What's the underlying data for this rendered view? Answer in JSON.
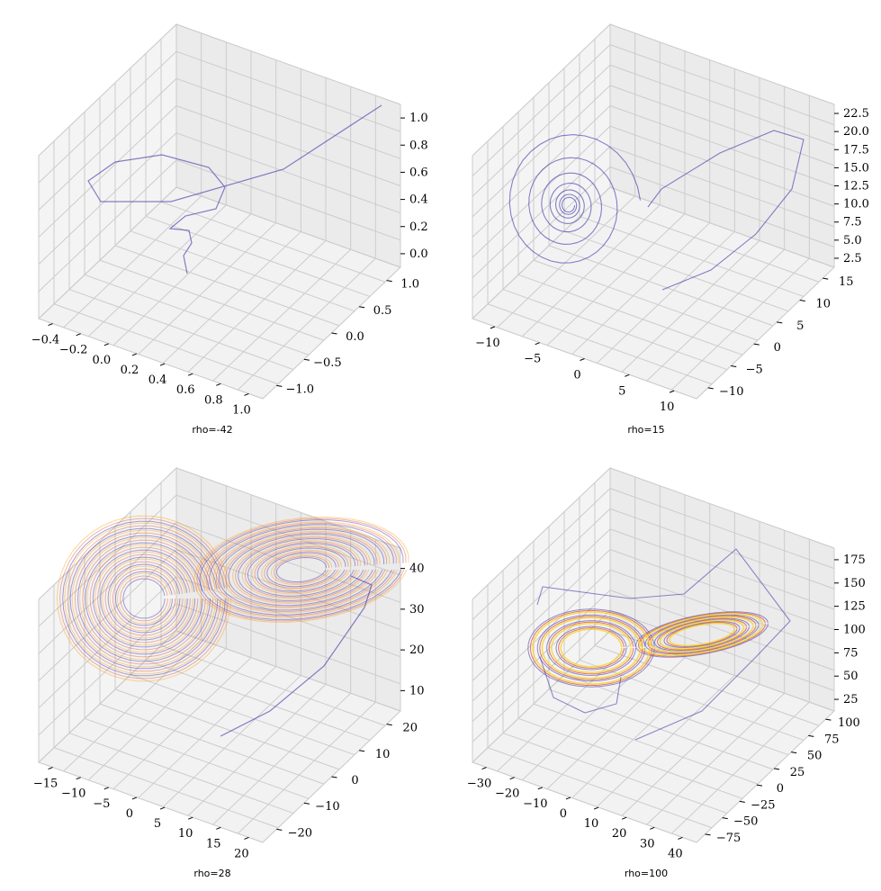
{
  "chart_data": [
    {
      "type": "line3d",
      "panel": "rho=-42",
      "caption": "rho=-42",
      "series": [
        {
          "color": "#3b2fa8",
          "x": [
            1.0,
            0.52,
            0.18,
            -0.08,
            -0.28,
            -0.4,
            -0.3,
            -0.08,
            0.1,
            0.16,
            0.1,
            0.0,
            -0.05,
            -0.02,
            0.0
          ],
          "y": [
            1.0,
            0.62,
            0.22,
            -0.2,
            -0.55,
            -0.7,
            -0.42,
            -0.1,
            0.08,
            0.2,
            0.15,
            0.05,
            0.0,
            0.0,
            0.0
          ],
          "z": [
            1.0,
            0.62,
            0.42,
            0.4,
            0.52,
            0.78,
            0.92,
            0.96,
            0.85,
            0.6,
            0.32,
            0.18,
            0.08,
            0.03,
            0.0
          ]
        }
      ],
      "axes": {
        "x_ticks": [
          "−0.4",
          "−0.2",
          "0.0",
          "0.2",
          "0.4",
          "0.6",
          "0.8",
          "1.0"
        ],
        "y_ticks": [
          "−1.0",
          "−0.5",
          "0.0",
          "0.5",
          "1.0"
        ],
        "z_ticks": [
          "0.0",
          "0.2",
          "0.4",
          "0.6",
          "0.8",
          "1.0"
        ]
      }
    },
    {
      "type": "line3d",
      "panel": "rho=15",
      "caption": "rho=15",
      "series": [
        {
          "color": "#3b2fa8",
          "description": "trajectory spiralling into fixed point near (-6,-6,14)"
        }
      ],
      "axes": {
        "x_ticks": [
          "−10",
          "−5",
          "0",
          "5",
          "10"
        ],
        "y_ticks": [
          "−10",
          "−5",
          "0",
          "5",
          "10",
          "15"
        ],
        "z_ticks": [
          "2.5",
          "5.0",
          "7.5",
          "10.0",
          "12.5",
          "15.0",
          "17.5",
          "20.0",
          "22.5"
        ]
      }
    },
    {
      "type": "line3d",
      "panel": "rho=28",
      "caption": "rho=28",
      "series": [
        {
          "color": "#3b2fa8",
          "description": "Lorenz butterfly attractor"
        },
        {
          "color": "#e0573f"
        },
        {
          "color": "#f7a21b"
        }
      ],
      "axes": {
        "x_ticks": [
          "−15",
          "−10",
          "−5",
          "0",
          "5",
          "10",
          "15",
          "20"
        ],
        "y_ticks": [
          "−20",
          "−10",
          "0",
          "10",
          "20"
        ],
        "z_ticks": [
          "10",
          "20",
          "30",
          "40"
        ]
      }
    },
    {
      "type": "line3d",
      "panel": "rho=100",
      "caption": "rho=100",
      "series": [
        {
          "color": "#3b2fa8"
        },
        {
          "color": "#e0573f"
        },
        {
          "color": "#f7d21b"
        }
      ],
      "axes": {
        "x_ticks": [
          "−30",
          "−20",
          "−10",
          "0",
          "10",
          "20",
          "30",
          "40"
        ],
        "y_ticks": [
          "−75",
          "−50",
          "−25",
          "0",
          "25",
          "50",
          "75",
          "100"
        ],
        "z_ticks": [
          "25",
          "50",
          "75",
          "100",
          "125",
          "150",
          "175"
        ]
      }
    }
  ]
}
